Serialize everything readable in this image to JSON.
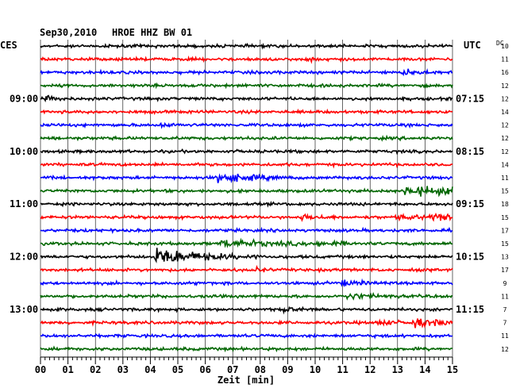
{
  "header": {
    "date": "Sep30,2010",
    "station": "HROE HHZ BW 01",
    "left_timezone": "CES",
    "right_timezone": "UTC",
    "dc_label": "DC"
  },
  "chart_data": {
    "type": "seismogram",
    "xlabel": "Zeit [min]",
    "xlim": [
      0,
      15
    ],
    "x_ticks": [
      "00",
      "01",
      "02",
      "03",
      "04",
      "05",
      "06",
      "07",
      "08",
      "09",
      "10",
      "11",
      "12",
      "13",
      "14",
      "15"
    ],
    "trace_colors": [
      "#000000",
      "#ff0000",
      "#0000ff",
      "#006600"
    ],
    "left_hour_labels": [
      {
        "trace": 4,
        "label": "09:00"
      },
      {
        "trace": 8,
        "label": "10:00"
      },
      {
        "trace": 12,
        "label": "11:00"
      },
      {
        "trace": 16,
        "label": "12:00"
      },
      {
        "trace": 20,
        "label": "13:00"
      }
    ],
    "right_hour_labels": [
      {
        "trace": 4,
        "label": "07:15"
      },
      {
        "trace": 8,
        "label": "08:15"
      },
      {
        "trace": 12,
        "label": "09:15"
      },
      {
        "trace": 16,
        "label": "10:15"
      },
      {
        "trace": 20,
        "label": "11:15"
      }
    ],
    "dc_offsets": [
      "10",
      "11",
      "16",
      "12",
      "12",
      "14",
      "12",
      "12",
      "12",
      "14",
      "11",
      "15",
      "18",
      "15",
      "17",
      "15",
      "13",
      "17",
      "9",
      "11",
      "7",
      "7",
      "11",
      "12"
    ],
    "events": [
      {
        "trace": 1,
        "minute": 9.9,
        "amplitude": 1.0,
        "duration": 0.3
      },
      {
        "trace": 2,
        "minute": 13.2,
        "amplitude": 2.0,
        "duration": 0.6
      },
      {
        "trace": 4,
        "minute": 0.2,
        "amplitude": 1.8,
        "duration": 0.4
      },
      {
        "trace": 6,
        "minute": 4.4,
        "amplitude": 1.2,
        "duration": 0.5
      },
      {
        "trace": 10,
        "minute": 6.5,
        "amplitude": 5.0,
        "duration": 1.0
      },
      {
        "trace": 11,
        "minute": 13.3,
        "amplitude": 4.5,
        "duration": 2.0
      },
      {
        "trace": 13,
        "minute": 9.5,
        "amplitude": 1.8,
        "duration": 0.7
      },
      {
        "trace": 13,
        "minute": 13.0,
        "amplitude": 2.5,
        "duration": 0.6
      },
      {
        "trace": 13,
        "minute": 14.2,
        "amplitude": 2.8,
        "duration": 1.0
      },
      {
        "trace": 15,
        "minute": 6.6,
        "amplitude": 3.2,
        "duration": 1.8
      },
      {
        "trace": 15,
        "minute": 10.1,
        "amplitude": 1.6,
        "duration": 0.8
      },
      {
        "trace": 16,
        "minute": 4.2,
        "amplitude": 8.0,
        "duration": 1.5
      },
      {
        "trace": 17,
        "minute": 7.9,
        "amplitude": 1.5,
        "duration": 0.3
      },
      {
        "trace": 18,
        "minute": 11.0,
        "amplitude": 2.2,
        "duration": 0.6
      },
      {
        "trace": 19,
        "minute": 11.2,
        "amplitude": 2.5,
        "duration": 0.8
      },
      {
        "trace": 20,
        "minute": 8.9,
        "amplitude": 2.0,
        "duration": 0.4
      },
      {
        "trace": 21,
        "minute": 12.3,
        "amplitude": 2.2,
        "duration": 0.6
      },
      {
        "trace": 21,
        "minute": 13.5,
        "amplitude": 4.0,
        "duration": 1.2
      }
    ]
  }
}
